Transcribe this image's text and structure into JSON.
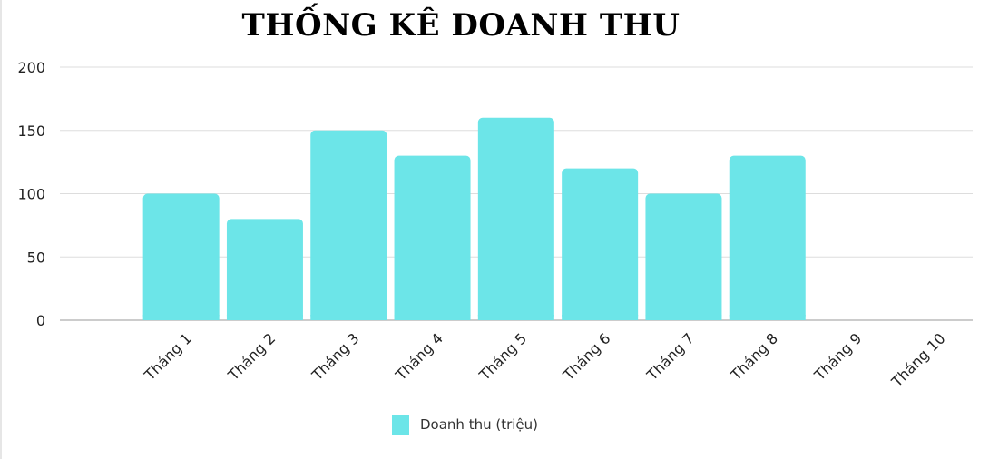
{
  "chart_data": {
    "type": "bar",
    "title": "THỐNG KÊ DOANH THU",
    "categories": [
      "Tháng 1",
      "Tháng 2",
      "Tháng 3",
      "Tháng 4",
      "Tháng 5",
      "Tháng 6",
      "Tháng 7",
      "Tháng 8",
      "Tháng 9",
      "Tháng 10"
    ],
    "series": [
      {
        "name": "Doanh thu (triệu)",
        "values": [
          100,
          80,
          150,
          130,
          160,
          120,
          100,
          130,
          null,
          null
        ],
        "color": "#6ce5e8"
      }
    ],
    "xlabel": "",
    "ylabel": "",
    "ylim": [
      0,
      200
    ],
    "yticks": [
      0,
      50,
      100,
      150,
      200
    ],
    "grid": true,
    "legend_position": "bottom"
  }
}
